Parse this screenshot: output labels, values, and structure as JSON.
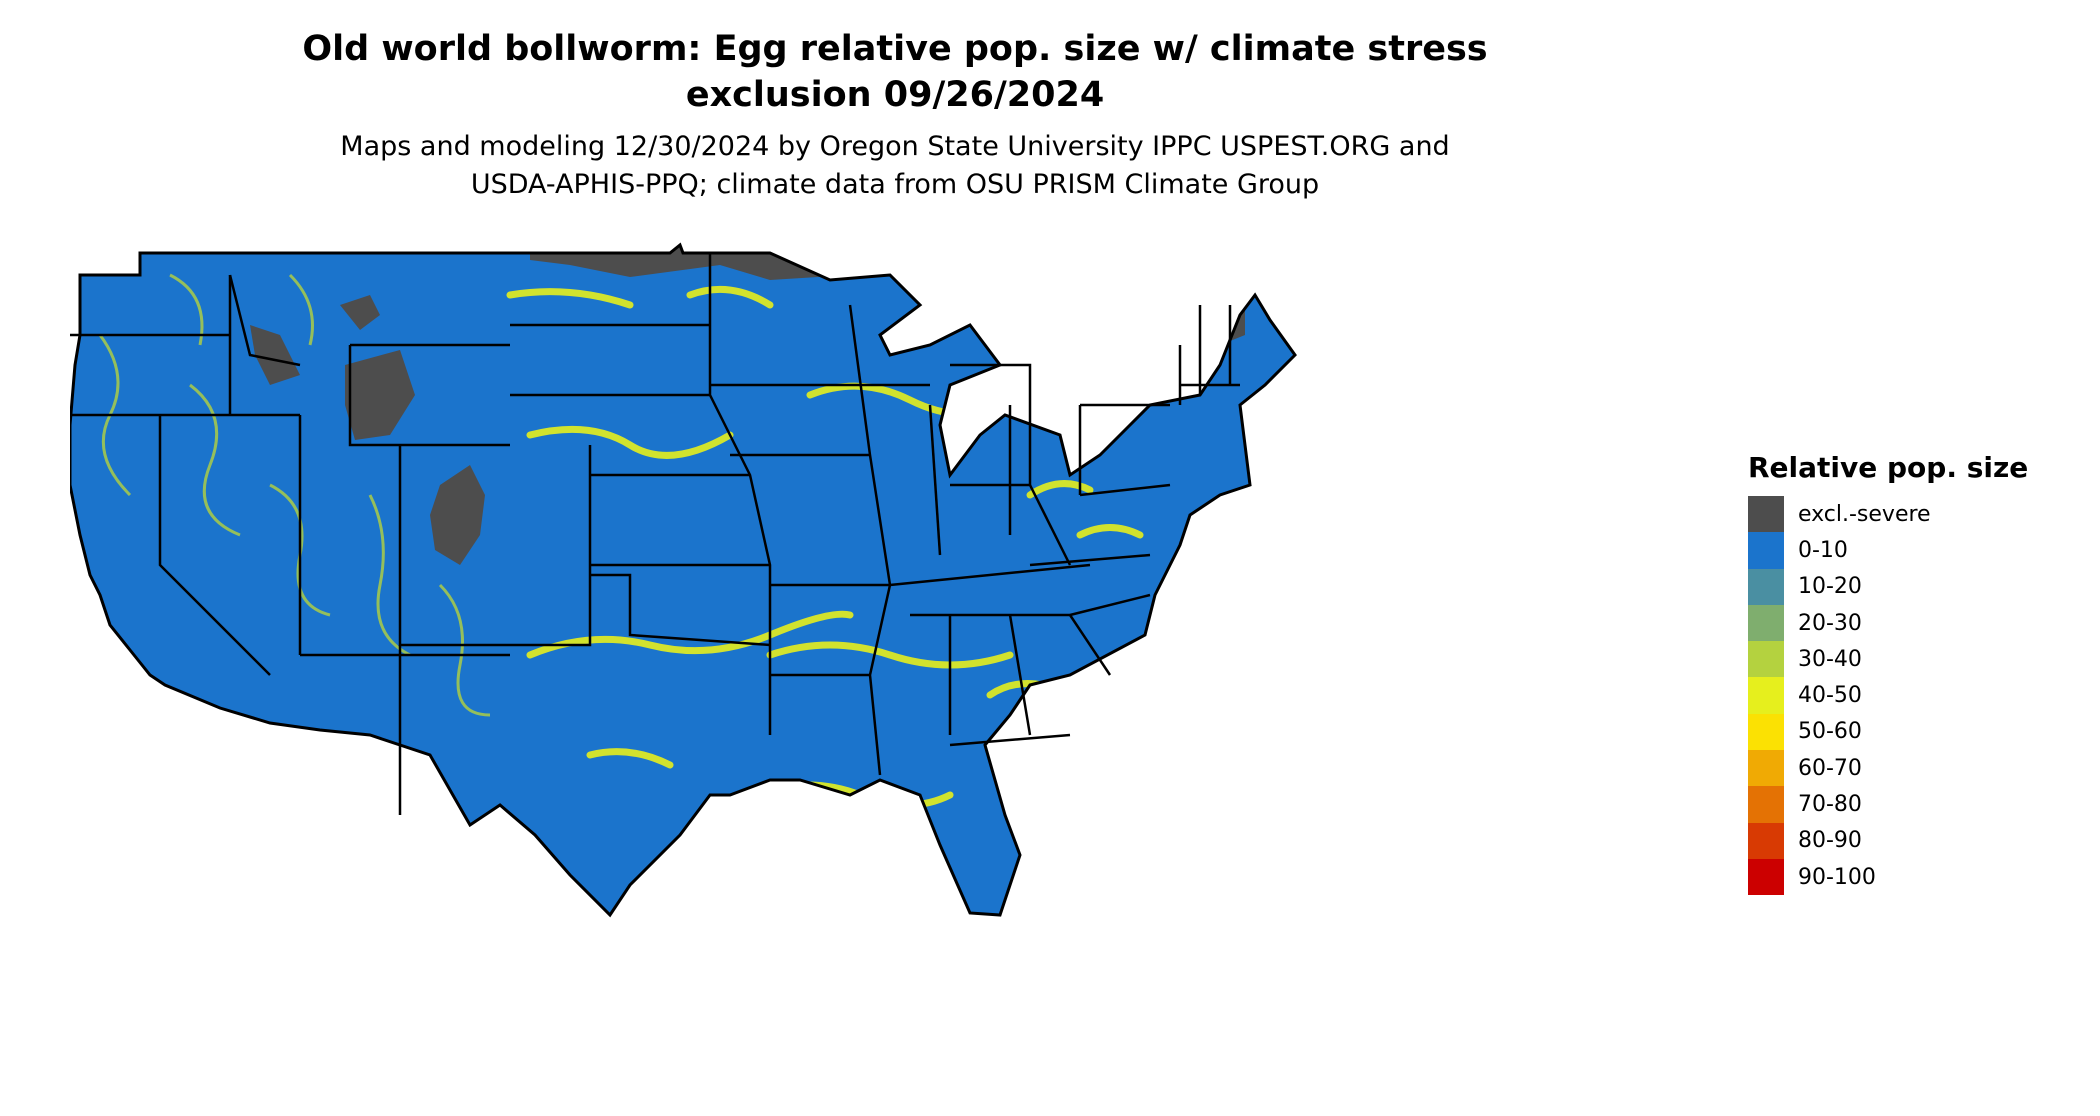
{
  "title_line1": "Old world bollworm: Egg relative pop. size w/ climate stress",
  "title_line2": "exclusion 09/26/2024",
  "subtitle_line1": "Maps and modeling 12/30/2024 by Oregon State University IPPC USPEST.ORG and",
  "subtitle_line2": "USDA-APHIS-PPQ; climate data from OSU PRISM Climate Group",
  "map": {
    "region": "contiguous-united-states",
    "land_color": "#1b74cc",
    "excluded_color": "#4d4d4d",
    "hotspot_color": "#e6ef1d",
    "border_color": "#000000"
  },
  "legend": {
    "title": "Relative pop. size",
    "items": [
      {
        "label": "excl.-severe",
        "color": "#4d4d4d"
      },
      {
        "label": "0-10",
        "color": "#1b74cc"
      },
      {
        "label": "10-20",
        "color": "#4a8fa2"
      },
      {
        "label": "20-30",
        "color": "#7fae6e"
      },
      {
        "label": "30-40",
        "color": "#b4d23f"
      },
      {
        "label": "40-50",
        "color": "#e6ef1d"
      },
      {
        "label": "50-60",
        "color": "#fbe103"
      },
      {
        "label": "60-70",
        "color": "#f0aa04"
      },
      {
        "label": "70-80",
        "color": "#e47204"
      },
      {
        "label": "80-90",
        "color": "#d83a03"
      },
      {
        "label": "90-100",
        "color": "#cc0000"
      }
    ]
  }
}
